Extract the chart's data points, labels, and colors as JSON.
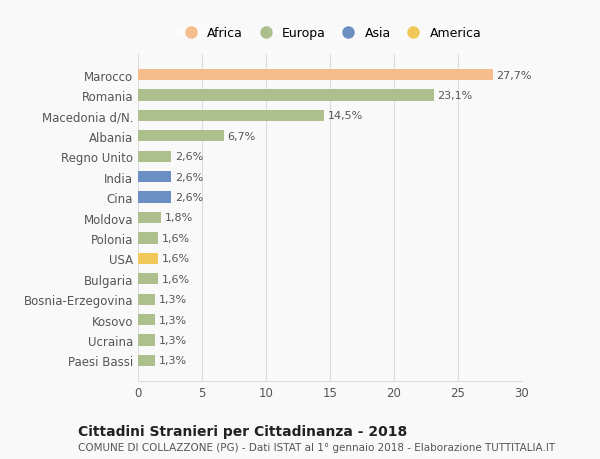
{
  "countries": [
    "Marocco",
    "Romania",
    "Macedonia d/N.",
    "Albania",
    "Regno Unito",
    "India",
    "Cina",
    "Moldova",
    "Polonia",
    "USA",
    "Bulgaria",
    "Bosnia-Erzegovina",
    "Kosovo",
    "Ucraina",
    "Paesi Bassi"
  ],
  "values": [
    27.7,
    23.1,
    14.5,
    6.7,
    2.6,
    2.6,
    2.6,
    1.8,
    1.6,
    1.6,
    1.6,
    1.3,
    1.3,
    1.3,
    1.3
  ],
  "labels": [
    "27,7%",
    "23,1%",
    "14,5%",
    "6,7%",
    "2,6%",
    "2,6%",
    "2,6%",
    "1,8%",
    "1,6%",
    "1,6%",
    "1,6%",
    "1,3%",
    "1,3%",
    "1,3%",
    "1,3%"
  ],
  "continents": [
    "Africa",
    "Europa",
    "Europa",
    "Europa",
    "Europa",
    "Asia",
    "Asia",
    "Europa",
    "Europa",
    "America",
    "Europa",
    "Europa",
    "Europa",
    "Europa",
    "Europa"
  ],
  "colors": {
    "Africa": "#F5BC8C",
    "Europa": "#AEBF8E",
    "Asia": "#6B8FC2",
    "America": "#F0C85A"
  },
  "legend_order": [
    "Africa",
    "Europa",
    "Asia",
    "America"
  ],
  "title": "Cittadini Stranieri per Cittadinanza - 2018",
  "subtitle": "COMUNE DI COLLAZZONE (PG) - Dati ISTAT al 1° gennaio 2018 - Elaborazione TUTTITALIA.IT",
  "xlim": [
    0,
    30
  ],
  "xticks": [
    0,
    5,
    10,
    15,
    20,
    25,
    30
  ],
  "background_color": "#f9f9f9",
  "grid_color": "#dddddd",
  "bar_height": 0.55,
  "label_fontsize": 8,
  "tick_fontsize": 8.5,
  "title_fontsize": 10,
  "subtitle_fontsize": 7.5
}
